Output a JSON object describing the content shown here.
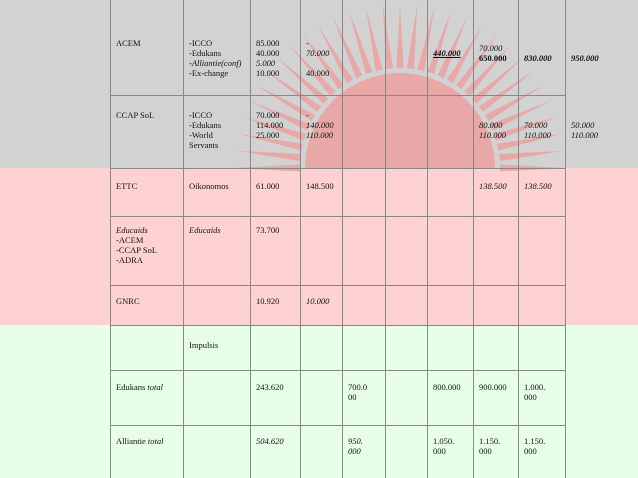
{
  "table": {
    "rows": [
      [
        "ACEM",
        [
          "-ICCO",
          "-Edukans",
          "-Alliantie(conf)",
          "-Ex-change"
        ],
        [
          "85.000",
          "40.000",
          "5.000",
          "10.000"
        ],
        [
          "-",
          "70.000",
          null,
          "40.000"
        ],
        null,
        null,
        "440.000",
        [
          "70.000",
          "650.000"
        ],
        "830.000",
        "950.000"
      ],
      [
        "CCAP SoL",
        [
          "-ICCO",
          "-Edukans",
          "-World",
          "Servants"
        ],
        [
          "70.000",
          "114.000",
          "25.000"
        ],
        [
          "-",
          "140.000",
          "110.000"
        ],
        null,
        null,
        null,
        [
          "80.000",
          "110.000"
        ],
        [
          "70.000",
          "110.000"
        ],
        [
          "50.000",
          "110.000"
        ]
      ],
      [
        "ETTC",
        "Oikonomos",
        "61.000",
        "148.500",
        null,
        null,
        null,
        "138.500",
        "138.500",
        null
      ],
      [
        [
          "Educaids",
          "-ACEM",
          "-CCAP SoL",
          "-ADRA"
        ],
        "Educaids",
        "73.700",
        null,
        null,
        null,
        null,
        null,
        null,
        null
      ],
      [
        "GNRC",
        null,
        "10.920",
        "10.000",
        null,
        null,
        null,
        null,
        null,
        null
      ],
      [
        null,
        "Impulsis",
        null,
        null,
        null,
        null,
        null,
        null,
        null,
        null
      ],
      [
        "Edukans total",
        null,
        "243.620",
        null,
        [
          "700.0",
          "00"
        ],
        null,
        "800.000",
        "900.000",
        [
          "1.000.",
          "000"
        ],
        null
      ],
      [
        "Alliantie total",
        null,
        "504.620",
        null,
        [
          "950.",
          "000"
        ],
        null,
        [
          "1.050.",
          "000"
        ],
        [
          "1.150.",
          "000"
        ],
        [
          "1.150.",
          "000"
        ],
        null
      ]
    ]
  }
}
